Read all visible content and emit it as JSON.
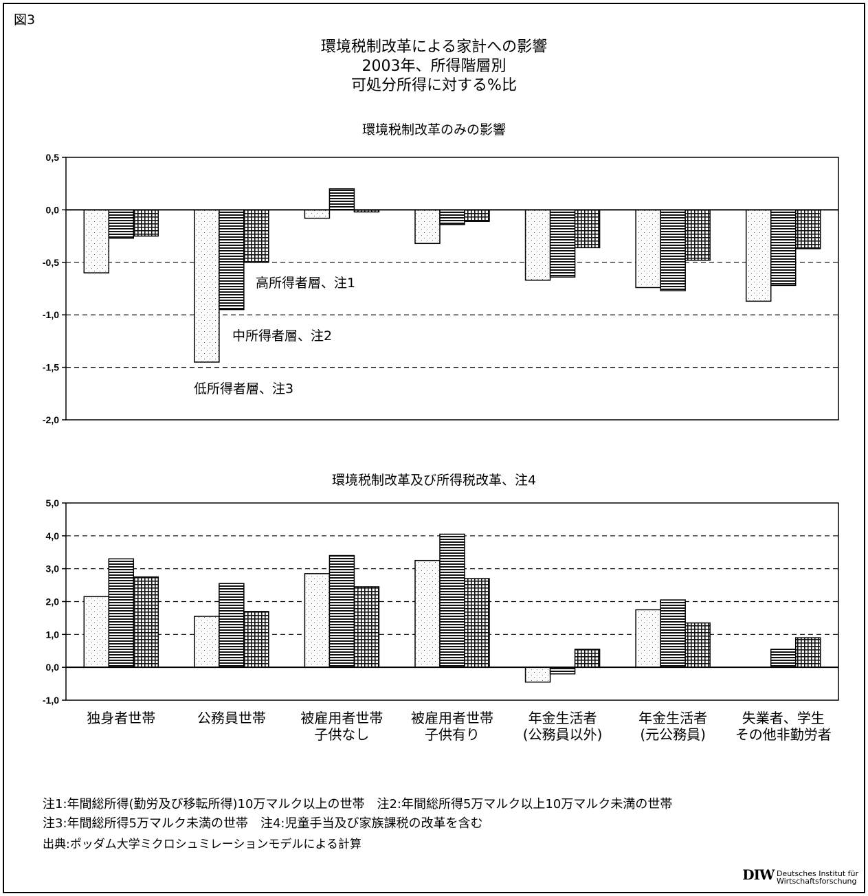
{
  "figure_label": "図3",
  "title_lines": [
    "環境税制改革による家計への影響",
    "2003年、所得階層別",
    "可処分所得に対する%比"
  ],
  "chart_data": [
    {
      "type": "bar",
      "title": "環境税制改革のみの影響",
      "categories": [
        "独身者世帯",
        "公務員世帯",
        "被雇用者世帯\n子供なし",
        "被雇用者世帯\n子供有り",
        "年金生活者\n(公務員以外)",
        "年金生活者\n(元公務員)",
        "失業者、学生\nその他非勤労者"
      ],
      "ylim": [
        -2.0,
        0.5
      ],
      "yticks": [
        "0,5",
        "0,0",
        "-0,5",
        "-1,0",
        "-1,5",
        "-2,0"
      ],
      "grid": true,
      "series": [
        {
          "name": "低所得者層、注3",
          "values": [
            -0.6,
            -1.45,
            -0.08,
            -0.32,
            -0.67,
            -0.74,
            -0.87
          ]
        },
        {
          "name": "中所得者層、注2",
          "values": [
            -0.27,
            -0.95,
            0.2,
            -0.14,
            -0.64,
            -0.77,
            -0.72
          ]
        },
        {
          "name": "高所得者層、注1",
          "values": [
            -0.25,
            -0.5,
            -0.02,
            -0.11,
            -0.36,
            -0.48,
            -0.37
          ]
        }
      ]
    },
    {
      "type": "bar",
      "title": "環境税制改革及び所得税改革、注4",
      "categories": [
        "独身者世帯",
        "公務員世帯",
        "被雇用者世帯\n子供なし",
        "被雇用者世帯\n子供有り",
        "年金生活者\n(公務員以外)",
        "年金生活者\n(元公務員)",
        "失業者、学生\nその他非勤労者"
      ],
      "ylim": [
        -1.0,
        5.0
      ],
      "yticks": [
        "5,0",
        "4,0",
        "3,0",
        "2,0",
        "1,0",
        "0,0",
        "-1,0"
      ],
      "grid": true,
      "series": [
        {
          "name": "低所得者層",
          "values": [
            2.15,
            1.55,
            2.85,
            3.25,
            -0.45,
            1.75,
            0.0
          ]
        },
        {
          "name": "中所得者層",
          "values": [
            3.3,
            2.55,
            3.4,
            4.05,
            -0.2,
            2.05,
            0.55
          ]
        },
        {
          "name": "高所得者層",
          "values": [
            2.75,
            1.7,
            2.45,
            2.7,
            0.55,
            1.35,
            0.9
          ]
        }
      ]
    }
  ],
  "category_labels": [
    [
      "独身者世帯",
      ""
    ],
    [
      "公務員世帯",
      ""
    ],
    [
      "被雇用者世帯",
      "子供なし"
    ],
    [
      "被雇用者世帯",
      "子供有り"
    ],
    [
      "年金生活者",
      "(公務員以外)"
    ],
    [
      "年金生活者",
      "(元公務員)"
    ],
    [
      "失業者、学生",
      "その他非勤労者"
    ]
  ],
  "annotations": {
    "high": "高所得者層、注1",
    "mid": "中所得者層、注2",
    "low": "低所得者層、注3"
  },
  "notes": [
    "注1:年間総所得(勤労及び移転所得)10万マルク以上の世帯　注2:年間総所得5万マルク以上10万マルク未満の世帯",
    "注3:年間総所得5万マルク未満の世帯　注4:児童手当及び家族課税の改革を含む"
  ],
  "source": "出典:ポッダム大学ミクロシュミレーションモデルによる計算",
  "logo": {
    "mark": "DIW",
    "text_1": "Deutsches Institut für",
    "text_2": "Wirtschaftsforschung"
  },
  "colors": {
    "bar_fill": "#ffffff",
    "stroke": "#000000",
    "grid": "#000000"
  }
}
